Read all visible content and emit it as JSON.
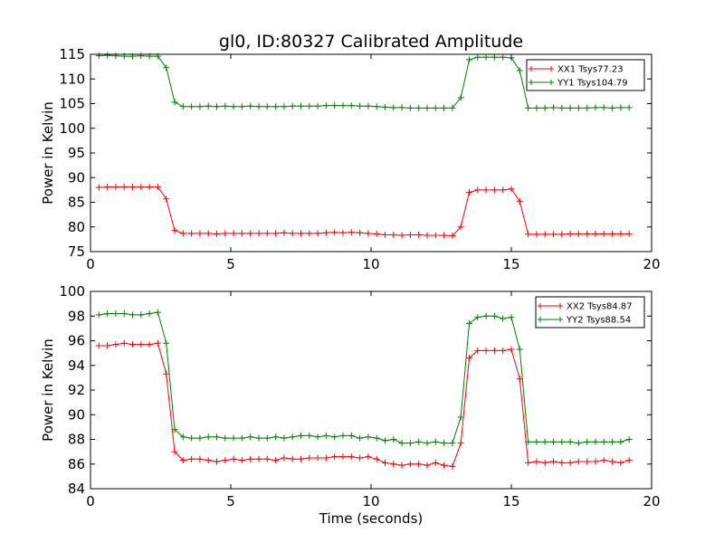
{
  "chart_data": [
    {
      "type": "line",
      "title": "gl0, ID:80327 Calibrated Amplitude",
      "xlabel": "",
      "ylabel": "Power in Kelvin",
      "xlim": [
        0,
        20
      ],
      "ylim": [
        75,
        115
      ],
      "xticks": [
        0,
        5,
        10,
        15,
        20
      ],
      "yticks": [
        75,
        80,
        85,
        90,
        95,
        100,
        105,
        110,
        115
      ],
      "legend": "top-right",
      "grid": false,
      "marker": "+",
      "x": [
        0.3,
        0.6,
        0.9,
        1.2,
        1.5,
        1.8,
        2.1,
        2.4,
        2.7,
        3.0,
        3.3,
        3.6,
        3.9,
        4.2,
        4.5,
        4.8,
        5.1,
        5.4,
        5.7,
        6.0,
        6.3,
        6.6,
        6.9,
        7.2,
        7.5,
        7.8,
        8.1,
        8.4,
        8.7,
        9.0,
        9.3,
        9.6,
        9.9,
        10.2,
        10.5,
        10.8,
        11.1,
        11.4,
        11.7,
        12.0,
        12.3,
        12.6,
        12.9,
        13.2,
        13.5,
        13.8,
        14.1,
        14.4,
        14.7,
        15.0,
        15.3,
        15.6,
        15.9,
        16.2,
        16.5,
        16.8,
        17.1,
        17.4,
        17.7,
        18.0,
        18.3,
        18.6,
        18.9,
        19.2
      ],
      "series": [
        {
          "name": "XX1 Tsys77.23",
          "color": "#ff0000",
          "values": [
            88.0,
            88.1,
            88.1,
            88.1,
            88.1,
            88.1,
            88.1,
            88.1,
            85.7,
            79.3,
            78.7,
            78.7,
            78.7,
            78.7,
            78.6,
            78.7,
            78.7,
            78.7,
            78.7,
            78.7,
            78.7,
            78.7,
            78.8,
            78.7,
            78.7,
            78.7,
            78.7,
            78.8,
            78.9,
            78.8,
            78.9,
            78.8,
            78.7,
            78.6,
            78.4,
            78.4,
            78.3,
            78.4,
            78.4,
            78.3,
            78.3,
            78.3,
            78.2,
            80.0,
            87.0,
            87.5,
            87.5,
            87.5,
            87.5,
            87.7,
            85.2,
            78.5,
            78.5,
            78.5,
            78.5,
            78.5,
            78.6,
            78.6,
            78.6,
            78.6,
            78.6,
            78.6,
            78.6,
            78.6
          ]
        },
        {
          "name": "YY1 Tsys104.79",
          "color": "#008000",
          "values": [
            114.7,
            114.8,
            114.7,
            114.6,
            114.6,
            114.7,
            114.6,
            114.6,
            112.3,
            105.3,
            104.4,
            104.4,
            104.4,
            104.5,
            104.4,
            104.5,
            104.4,
            104.4,
            104.5,
            104.4,
            104.4,
            104.4,
            104.4,
            104.5,
            104.5,
            104.5,
            104.5,
            104.6,
            104.6,
            104.6,
            104.6,
            104.5,
            104.5,
            104.4,
            104.3,
            104.2,
            104.2,
            104.1,
            104.1,
            104.1,
            104.1,
            104.1,
            104.1,
            106.2,
            113.9,
            114.4,
            114.4,
            114.4,
            114.4,
            114.3,
            111.7,
            104.1,
            104.1,
            104.1,
            104.2,
            104.1,
            104.1,
            104.1,
            104.1,
            104.2,
            104.2,
            104.1,
            104.2,
            104.2
          ]
        }
      ]
    },
    {
      "type": "line",
      "title": "",
      "xlabel": "Time (seconds)",
      "ylabel": "Power in Kelvin",
      "xlim": [
        0,
        20
      ],
      "ylim": [
        84,
        100
      ],
      "xticks": [
        0,
        5,
        10,
        15,
        20
      ],
      "yticks": [
        84,
        86,
        88,
        90,
        92,
        94,
        96,
        98,
        100
      ],
      "legend": "top-right",
      "grid": false,
      "marker": "+",
      "x": [
        0.3,
        0.6,
        0.9,
        1.2,
        1.5,
        1.8,
        2.1,
        2.4,
        2.7,
        3.0,
        3.3,
        3.6,
        3.9,
        4.2,
        4.5,
        4.8,
        5.1,
        5.4,
        5.7,
        6.0,
        6.3,
        6.6,
        6.9,
        7.2,
        7.5,
        7.8,
        8.1,
        8.4,
        8.7,
        9.0,
        9.3,
        9.6,
        9.9,
        10.2,
        10.5,
        10.8,
        11.1,
        11.4,
        11.7,
        12.0,
        12.3,
        12.6,
        12.9,
        13.2,
        13.5,
        13.8,
        14.1,
        14.4,
        14.7,
        15.0,
        15.3,
        15.6,
        15.9,
        16.2,
        16.5,
        16.8,
        17.1,
        17.4,
        17.7,
        18.0,
        18.3,
        18.6,
        18.9,
        19.2
      ],
      "series": [
        {
          "name": "XX2 Tsys84.87",
          "color": "#ff0000",
          "values": [
            95.6,
            95.6,
            95.7,
            95.8,
            95.7,
            95.7,
            95.7,
            95.8,
            93.3,
            87.0,
            86.3,
            86.4,
            86.4,
            86.3,
            86.2,
            86.3,
            86.4,
            86.3,
            86.4,
            86.4,
            86.4,
            86.3,
            86.5,
            86.4,
            86.4,
            86.5,
            86.5,
            86.5,
            86.6,
            86.6,
            86.6,
            86.5,
            86.6,
            86.4,
            86.1,
            86.0,
            85.9,
            86.0,
            86.0,
            85.9,
            86.1,
            85.9,
            85.8,
            87.7,
            94.6,
            95.2,
            95.2,
            95.2,
            95.2,
            95.3,
            92.9,
            86.1,
            86.2,
            86.1,
            86.2,
            86.1,
            86.1,
            86.2,
            86.2,
            86.2,
            86.3,
            86.2,
            86.1,
            86.3
          ]
        },
        {
          "name": "YY2 Tsys88.54",
          "color": "#008000",
          "values": [
            98.1,
            98.2,
            98.2,
            98.2,
            98.1,
            98.1,
            98.2,
            98.3,
            95.8,
            88.8,
            88.2,
            88.1,
            88.1,
            88.2,
            88.2,
            88.1,
            88.1,
            88.1,
            88.2,
            88.1,
            88.1,
            88.2,
            88.1,
            88.2,
            88.3,
            88.3,
            88.2,
            88.3,
            88.2,
            88.3,
            88.3,
            88.1,
            88.2,
            88.1,
            87.9,
            88.0,
            87.7,
            87.7,
            87.8,
            87.7,
            87.8,
            87.7,
            87.7,
            89.8,
            97.4,
            97.9,
            98.0,
            98.0,
            97.8,
            97.9,
            95.3,
            87.8,
            87.8,
            87.8,
            87.8,
            87.8,
            87.8,
            87.7,
            87.8,
            87.8,
            87.8,
            87.8,
            87.8,
            88.0
          ]
        }
      ]
    }
  ]
}
